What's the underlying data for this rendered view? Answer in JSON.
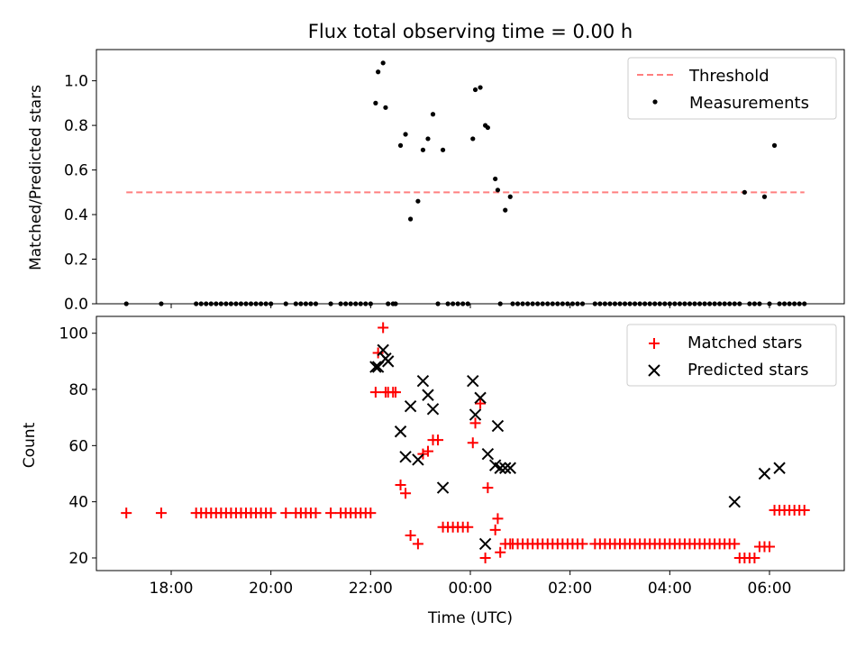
{
  "chart_data": [
    {
      "type": "scatter",
      "title": "Flux total observing time = 0.00 h",
      "xlabel": "",
      "ylabel": "Matched/Predicted stars",
      "xlim": [
        16.5,
        31.5
      ],
      "ylim": [
        0,
        1.14
      ],
      "yticks": [
        0.0,
        0.2,
        0.4,
        0.6,
        0.8,
        1.0
      ],
      "ytick_labels": [
        "0.0",
        "0.2",
        "0.4",
        "0.6",
        "0.8",
        "1.0"
      ],
      "legend_position": "top-right",
      "grid": false,
      "series": [
        {
          "name": "Threshold",
          "style": "dashed-line",
          "color": "#ff7f7f",
          "x": [
            17.1,
            30.7
          ],
          "y": [
            0.5,
            0.5
          ]
        },
        {
          "name": "Measurements",
          "style": "dot",
          "color": "#000000",
          "x": [
            17.1,
            17.8,
            18.5,
            18.6,
            18.7,
            18.8,
            18.9,
            19.0,
            19.1,
            19.2,
            19.3,
            19.4,
            19.5,
            19.6,
            19.7,
            19.8,
            19.9,
            20.0,
            20.3,
            20.5,
            20.6,
            20.7,
            20.8,
            20.9,
            21.2,
            21.4,
            21.5,
            21.6,
            21.7,
            21.8,
            21.9,
            22.0,
            22.1,
            22.15,
            22.25,
            22.3,
            22.35,
            22.45,
            22.5,
            22.6,
            22.7,
            22.8,
            22.95,
            23.05,
            23.15,
            23.25,
            23.35,
            23.45,
            23.55,
            23.65,
            23.75,
            23.85,
            23.95,
            24.05,
            24.1,
            24.2,
            24.3,
            24.35,
            24.5,
            24.55,
            24.6,
            24.7,
            24.8,
            24.85,
            24.95,
            25.05,
            25.15,
            25.25,
            25.35,
            25.45,
            25.55,
            25.65,
            25.75,
            25.85,
            25.95,
            26.05,
            26.15,
            26.25,
            26.5,
            26.6,
            26.7,
            26.8,
            26.9,
            27.0,
            27.1,
            27.2,
            27.3,
            27.4,
            27.5,
            27.6,
            27.7,
            27.8,
            27.9,
            28.0,
            28.1,
            28.2,
            28.3,
            28.4,
            28.5,
            28.6,
            28.7,
            28.8,
            28.9,
            29.0,
            29.1,
            29.2,
            29.3,
            29.4,
            29.5,
            29.6,
            29.7,
            29.8,
            29.9,
            30.0,
            30.1,
            30.2,
            30.3,
            30.4,
            30.5,
            30.6,
            30.7
          ],
          "y": [
            0.0,
            0.0,
            0.0,
            0.0,
            0.0,
            0.0,
            0.0,
            0.0,
            0.0,
            0.0,
            0.0,
            0.0,
            0.0,
            0.0,
            0.0,
            0.0,
            0.0,
            0.0,
            0.0,
            0.0,
            0.0,
            0.0,
            0.0,
            0.0,
            0.0,
            0.0,
            0.0,
            0.0,
            0.0,
            0.0,
            0.0,
            0.0,
            0.9,
            1.04,
            1.08,
            0.88,
            0.0,
            0.0,
            0.0,
            0.71,
            0.76,
            0.38,
            0.46,
            0.69,
            0.74,
            0.85,
            0.0,
            0.69,
            0.0,
            0.0,
            0.0,
            0.0,
            0.0,
            0.74,
            0.96,
            0.97,
            0.8,
            0.79,
            0.56,
            0.51,
            0.0,
            0.42,
            0.48,
            0.0,
            0.0,
            0.0,
            0.0,
            0.0,
            0.0,
            0.0,
            0.0,
            0.0,
            0.0,
            0.0,
            0.0,
            0.0,
            0.0,
            0.0,
            0.0,
            0.0,
            0.0,
            0.0,
            0.0,
            0.0,
            0.0,
            0.0,
            0.0,
            0.0,
            0.0,
            0.0,
            0.0,
            0.0,
            0.0,
            0.0,
            0.0,
            0.0,
            0.0,
            0.0,
            0.0,
            0.0,
            0.0,
            0.0,
            0.0,
            0.0,
            0.0,
            0.0,
            0.0,
            0.0,
            0.5,
            0.0,
            0.0,
            0.0,
            0.48,
            0.0,
            0.71,
            0.0,
            0.0,
            0.0,
            0.0,
            0.0,
            0.0
          ]
        }
      ]
    },
    {
      "type": "scatter",
      "title": "",
      "xlabel": "Time (UTC)",
      "ylabel": "Count",
      "xlim": [
        16.5,
        31.5
      ],
      "ylim": [
        15.5,
        106
      ],
      "xticks": [
        18,
        20,
        22,
        24,
        26,
        28,
        30
      ],
      "xtick_labels": [
        "18:00",
        "20:00",
        "22:00",
        "00:00",
        "02:00",
        "04:00",
        "06:00"
      ],
      "yticks": [
        20,
        40,
        60,
        80,
        100
      ],
      "ytick_labels": [
        "20",
        "40",
        "60",
        "80",
        "100"
      ],
      "legend_position": "top-right",
      "grid": false,
      "series": [
        {
          "name": "Matched stars",
          "style": "plus",
          "color": "#ff0000",
          "x": [
            17.1,
            17.8,
            18.5,
            18.6,
            18.7,
            18.8,
            18.9,
            19.0,
            19.1,
            19.2,
            19.3,
            19.4,
            19.5,
            19.6,
            19.7,
            19.8,
            19.9,
            20.0,
            20.3,
            20.5,
            20.6,
            20.7,
            20.8,
            20.9,
            21.2,
            21.4,
            21.5,
            21.6,
            21.7,
            21.8,
            21.9,
            22.0,
            22.1,
            22.15,
            22.25,
            22.3,
            22.35,
            22.45,
            22.5,
            22.6,
            22.7,
            22.8,
            22.95,
            23.05,
            23.15,
            23.25,
            23.35,
            23.45,
            23.55,
            23.65,
            23.75,
            23.85,
            23.95,
            24.05,
            24.1,
            24.2,
            24.3,
            24.35,
            24.5,
            24.55,
            24.6,
            24.7,
            24.8,
            24.85,
            24.95,
            25.05,
            25.15,
            25.25,
            25.35,
            25.45,
            25.55,
            25.65,
            25.75,
            25.85,
            25.95,
            26.05,
            26.15,
            26.25,
            26.5,
            26.6,
            26.7,
            26.8,
            26.9,
            27.0,
            27.1,
            27.2,
            27.3,
            27.4,
            27.5,
            27.6,
            27.7,
            27.8,
            27.9,
            28.0,
            28.1,
            28.2,
            28.3,
            28.4,
            28.5,
            28.6,
            28.7,
            28.8,
            28.9,
            29.0,
            29.1,
            29.2,
            29.3,
            29.4,
            29.5,
            29.6,
            29.7,
            29.8,
            29.9,
            30.0,
            30.1,
            30.2,
            30.3,
            30.4,
            30.5,
            30.6,
            30.7
          ],
          "y": [
            36,
            36,
            36,
            36,
            36,
            36,
            36,
            36,
            36,
            36,
            36,
            36,
            36,
            36,
            36,
            36,
            36,
            36,
            36,
            36,
            36,
            36,
            36,
            36,
            36,
            36,
            36,
            36,
            36,
            36,
            36,
            36,
            79,
            93,
            102,
            79,
            79,
            79,
            79,
            46,
            43,
            28,
            25,
            57,
            58,
            62,
            62,
            31,
            31,
            31,
            31,
            31,
            31,
            61,
            68,
            75,
            20,
            45,
            30,
            34,
            22,
            25,
            25,
            25,
            25,
            25,
            25,
            25,
            25,
            25,
            25,
            25,
            25,
            25,
            25,
            25,
            25,
            25,
            25,
            25,
            25,
            25,
            25,
            25,
            25,
            25,
            25,
            25,
            25,
            25,
            25,
            25,
            25,
            25,
            25,
            25,
            25,
            25,
            25,
            25,
            25,
            25,
            25,
            25,
            25,
            25,
            25,
            20,
            20,
            20,
            20,
            24,
            24,
            24,
            37,
            37,
            37,
            37,
            37,
            37,
            37
          ]
        },
        {
          "name": "Predicted stars",
          "style": "x",
          "color": "#000000",
          "x": [
            22.1,
            22.15,
            22.25,
            22.3,
            22.35,
            22.6,
            22.7,
            22.8,
            22.95,
            23.05,
            23.15,
            23.25,
            23.45,
            24.05,
            24.1,
            24.2,
            24.3,
            24.35,
            24.5,
            24.55,
            24.6,
            24.7,
            24.8,
            29.3,
            29.9,
            30.2
          ],
          "y": [
            88,
            88,
            94,
            91,
            90,
            65,
            56,
            74,
            55,
            83,
            78,
            73,
            45,
            83,
            71,
            77,
            25,
            57,
            53,
            67,
            52,
            52,
            52,
            40,
            50,
            52
          ]
        }
      ]
    }
  ]
}
